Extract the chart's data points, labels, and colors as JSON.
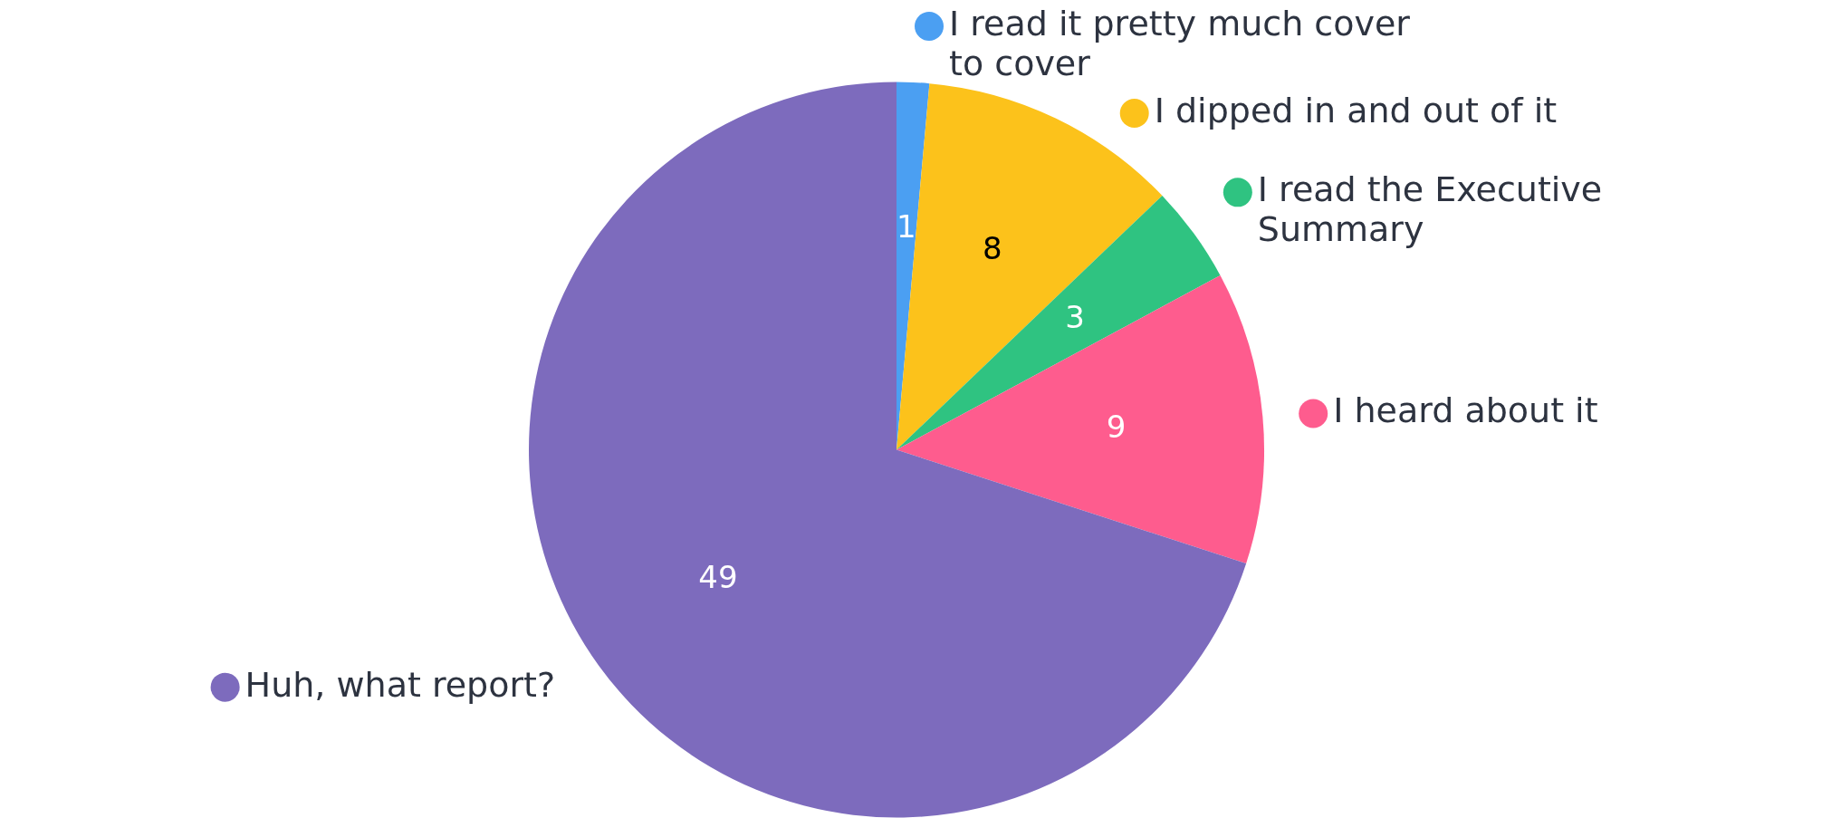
{
  "chart_data": {
    "type": "pie",
    "categories": [
      "I read it pretty much cover to cover",
      "I dipped in and out of it",
      "I read the Executive Summary",
      "I heard about it",
      "Huh, what report?"
    ],
    "values": [
      1,
      8,
      3,
      9,
      49
    ],
    "colors": [
      "#4b9ff2",
      "#fcc21b",
      "#2fc381",
      "#fe5c8e",
      "#7d6bbd"
    ],
    "data_labels": true,
    "legend": "right"
  }
}
